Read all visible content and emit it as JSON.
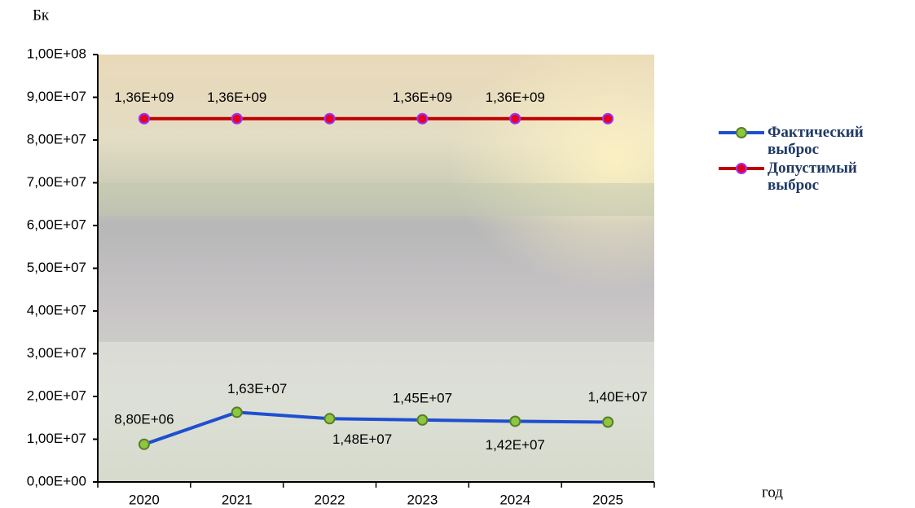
{
  "chart_data": {
    "type": "line",
    "y_label": "Бк",
    "x_label": "год",
    "categories": [
      "2020",
      "2021",
      "2022",
      "2023",
      "2024",
      "2025"
    ],
    "series": [
      {
        "name": "Фактический выброс",
        "color": "#1f4fd0",
        "marker_color": "#8dc63f",
        "values": [
          8800000,
          16300000,
          14800000,
          14500000,
          14200000,
          14000000
        ],
        "value_labels": [
          "8,80E+06",
          "1,63E+07",
          "1,48E+07",
          "1,45E+07",
          "1,42E+07",
          "1,40E+07"
        ]
      },
      {
        "name": "Допустимый выброс",
        "color": "#c00000",
        "marker_color": "#e8001c",
        "values": [
          85000000,
          85000000,
          85000000,
          85000000,
          85000000,
          85000000
        ]
      }
    ],
    "annotations": [
      "1,36E+09",
      "1,36E+09",
      "1,36E+09",
      "1,36E+09"
    ],
    "ylim": [
      0,
      100000000
    ],
    "yticks": [
      {
        "value": 0,
        "label": "0,00E+00"
      },
      {
        "value": 10000000,
        "label": "1,00E+07"
      },
      {
        "value": 20000000,
        "label": "2,00E+07"
      },
      {
        "value": 30000000,
        "label": "3,00E+07"
      },
      {
        "value": 40000000,
        "label": "4,00E+07"
      },
      {
        "value": 50000000,
        "label": "5,00E+07"
      },
      {
        "value": 60000000,
        "label": "6,00E+07"
      },
      {
        "value": 70000000,
        "label": "7,00E+07"
      },
      {
        "value": 80000000,
        "label": "8,00E+07"
      },
      {
        "value": 90000000,
        "label": "9,00E+07"
      },
      {
        "value": 100000000,
        "label": "1,00E+08"
      }
    ],
    "grid": false
  }
}
